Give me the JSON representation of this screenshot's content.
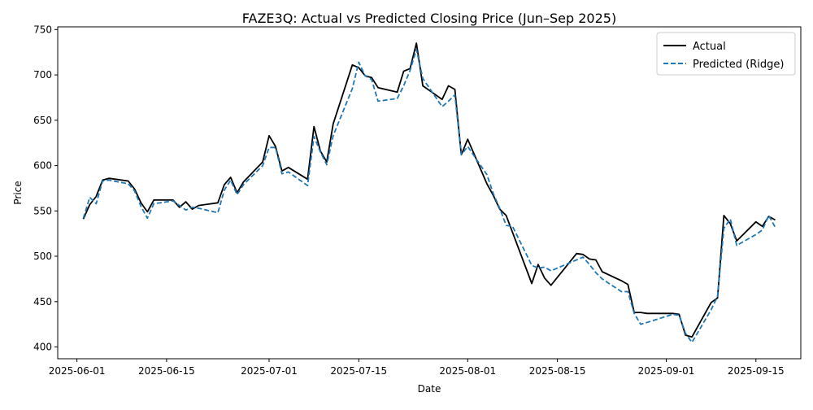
{
  "chart_data": {
    "type": "line",
    "title": "FAZE3Q: Actual vs Predicted Closing Price (Jun–Sep 2025)",
    "xlabel": "Date",
    "ylabel": "Price",
    "xlim": [
      "2025-05-29",
      "2025-09-22"
    ],
    "ylim": [
      387,
      753
    ],
    "grid": false,
    "legend_position": "top-right",
    "x_ticks": [
      {
        "date": "2025-06-01",
        "label": "2025-06-01"
      },
      {
        "date": "2025-06-15",
        "label": "2025-06-15"
      },
      {
        "date": "2025-07-01",
        "label": "2025-07-01"
      },
      {
        "date": "2025-07-15",
        "label": "2025-07-15"
      },
      {
        "date": "2025-08-01",
        "label": "2025-08-01"
      },
      {
        "date": "2025-08-15",
        "label": "2025-08-15"
      },
      {
        "date": "2025-09-01",
        "label": "2025-09-01"
      },
      {
        "date": "2025-09-15",
        "label": "2025-09-15"
      }
    ],
    "y_ticks": [
      400,
      450,
      500,
      550,
      600,
      650,
      700,
      750
    ],
    "series": [
      {
        "name": "Actual",
        "color": "#000000",
        "style": "solid",
        "points": [
          [
            "2025-06-02",
            541
          ],
          [
            "2025-06-03",
            557
          ],
          [
            "2025-06-04",
            566
          ],
          [
            "2025-06-05",
            584
          ],
          [
            "2025-06-06",
            586
          ],
          [
            "2025-06-09",
            583
          ],
          [
            "2025-06-10",
            574
          ],
          [
            "2025-06-11",
            559
          ],
          [
            "2025-06-12",
            549
          ],
          [
            "2025-06-13",
            562
          ],
          [
            "2025-06-16",
            562
          ],
          [
            "2025-06-17",
            554
          ],
          [
            "2025-06-18",
            560
          ],
          [
            "2025-06-19",
            552
          ],
          [
            "2025-06-20",
            556
          ],
          [
            "2025-06-23",
            559
          ],
          [
            "2025-06-24",
            579
          ],
          [
            "2025-06-25",
            587
          ],
          [
            "2025-06-26",
            570
          ],
          [
            "2025-06-27",
            582
          ],
          [
            "2025-06-30",
            604
          ],
          [
            "2025-07-01",
            633
          ],
          [
            "2025-07-02",
            621
          ],
          [
            "2025-07-03",
            594
          ],
          [
            "2025-07-04",
            598
          ],
          [
            "2025-07-07",
            585
          ],
          [
            "2025-07-08",
            643
          ],
          [
            "2025-07-09",
            616
          ],
          [
            "2025-07-10",
            604
          ],
          [
            "2025-07-11",
            646
          ],
          [
            "2025-07-14",
            711
          ],
          [
            "2025-07-15",
            708
          ],
          [
            "2025-07-16",
            699
          ],
          [
            "2025-07-17",
            697
          ],
          [
            "2025-07-18",
            686
          ],
          [
            "2025-07-21",
            681
          ],
          [
            "2025-07-22",
            704
          ],
          [
            "2025-07-23",
            707
          ],
          [
            "2025-07-24",
            735
          ],
          [
            "2025-07-25",
            688
          ],
          [
            "2025-07-28",
            673
          ],
          [
            "2025-07-29",
            688
          ],
          [
            "2025-07-30",
            684
          ],
          [
            "2025-07-31",
            612
          ],
          [
            "2025-08-01",
            629
          ],
          [
            "2025-08-04",
            580
          ],
          [
            "2025-08-05",
            567
          ],
          [
            "2025-08-06",
            552
          ],
          [
            "2025-08-07",
            545
          ],
          [
            "2025-08-11",
            470
          ],
          [
            "2025-08-12",
            491
          ],
          [
            "2025-08-13",
            476
          ],
          [
            "2025-08-14",
            468
          ],
          [
            "2025-08-18",
            503
          ],
          [
            "2025-08-19",
            502
          ],
          [
            "2025-08-20",
            497
          ],
          [
            "2025-08-21",
            496
          ],
          [
            "2025-08-22",
            483
          ],
          [
            "2025-08-25",
            473
          ],
          [
            "2025-08-26",
            469
          ],
          [
            "2025-08-27",
            438
          ],
          [
            "2025-08-28",
            438
          ],
          [
            "2025-08-29",
            437
          ],
          [
            "2025-09-02",
            437
          ],
          [
            "2025-09-03",
            436
          ],
          [
            "2025-09-04",
            413
          ],
          [
            "2025-09-05",
            411
          ],
          [
            "2025-09-08",
            449
          ],
          [
            "2025-09-09",
            454
          ],
          [
            "2025-09-10",
            545
          ],
          [
            "2025-09-11",
            536
          ],
          [
            "2025-09-12",
            517
          ],
          [
            "2025-09-15",
            538
          ],
          [
            "2025-09-16",
            533
          ],
          [
            "2025-09-17",
            544
          ],
          [
            "2025-09-18",
            540
          ]
        ]
      },
      {
        "name": "Predicted (Ridge)",
        "color": "#1f77b4",
        "style": "dashed",
        "points": [
          [
            "2025-06-02",
            542
          ],
          [
            "2025-06-03",
            565
          ],
          [
            "2025-06-04",
            558
          ],
          [
            "2025-06-05",
            583
          ],
          [
            "2025-06-06",
            584
          ],
          [
            "2025-06-09",
            580
          ],
          [
            "2025-06-10",
            572
          ],
          [
            "2025-06-11",
            555
          ],
          [
            "2025-06-12",
            542
          ],
          [
            "2025-06-13",
            558
          ],
          [
            "2025-06-16",
            561
          ],
          [
            "2025-06-17",
            556
          ],
          [
            "2025-06-18",
            551
          ],
          [
            "2025-06-19",
            554
          ],
          [
            "2025-06-20",
            553
          ],
          [
            "2025-06-23",
            548
          ],
          [
            "2025-06-24",
            573
          ],
          [
            "2025-06-25",
            584
          ],
          [
            "2025-06-26",
            568
          ],
          [
            "2025-06-27",
            579
          ],
          [
            "2025-06-30",
            600
          ],
          [
            "2025-07-01",
            620
          ],
          [
            "2025-07-02",
            620
          ],
          [
            "2025-07-03",
            591
          ],
          [
            "2025-07-04",
            593
          ],
          [
            "2025-07-07",
            578
          ],
          [
            "2025-07-08",
            632
          ],
          [
            "2025-07-09",
            615
          ],
          [
            "2025-07-10",
            601
          ],
          [
            "2025-07-11",
            633
          ],
          [
            "2025-07-14",
            685
          ],
          [
            "2025-07-15",
            714
          ],
          [
            "2025-07-16",
            699
          ],
          [
            "2025-07-17",
            695
          ],
          [
            "2025-07-18",
            671
          ],
          [
            "2025-07-21",
            674
          ],
          [
            "2025-07-22",
            688
          ],
          [
            "2025-07-23",
            705
          ],
          [
            "2025-07-24",
            728
          ],
          [
            "2025-07-25",
            696
          ],
          [
            "2025-07-28",
            665
          ],
          [
            "2025-07-29",
            671
          ],
          [
            "2025-07-30",
            678
          ],
          [
            "2025-07-31",
            612
          ],
          [
            "2025-08-01",
            621
          ],
          [
            "2025-08-04",
            590
          ],
          [
            "2025-08-05",
            569
          ],
          [
            "2025-08-06",
            553
          ],
          [
            "2025-08-07",
            534
          ],
          [
            "2025-08-08",
            533
          ],
          [
            "2025-08-11",
            490
          ],
          [
            "2025-08-12",
            487
          ],
          [
            "2025-08-13",
            488
          ],
          [
            "2025-08-14",
            484
          ],
          [
            "2025-08-18",
            496
          ],
          [
            "2025-08-19",
            499
          ],
          [
            "2025-08-20",
            491
          ],
          [
            "2025-08-21",
            482
          ],
          [
            "2025-08-22",
            475
          ],
          [
            "2025-08-25",
            461
          ],
          [
            "2025-08-26",
            461
          ],
          [
            "2025-08-27",
            437
          ],
          [
            "2025-08-28",
            425
          ],
          [
            "2025-08-29",
            427
          ],
          [
            "2025-09-02",
            436
          ],
          [
            "2025-09-03",
            435
          ],
          [
            "2025-09-04",
            415
          ],
          [
            "2025-09-05",
            405
          ],
          [
            "2025-09-08",
            441
          ],
          [
            "2025-09-09",
            456
          ],
          [
            "2025-09-10",
            531
          ],
          [
            "2025-09-11",
            541
          ],
          [
            "2025-09-12",
            512
          ],
          [
            "2025-09-15",
            524
          ],
          [
            "2025-09-16",
            529
          ],
          [
            "2025-09-17",
            545
          ],
          [
            "2025-09-18",
            532
          ]
        ]
      }
    ]
  }
}
